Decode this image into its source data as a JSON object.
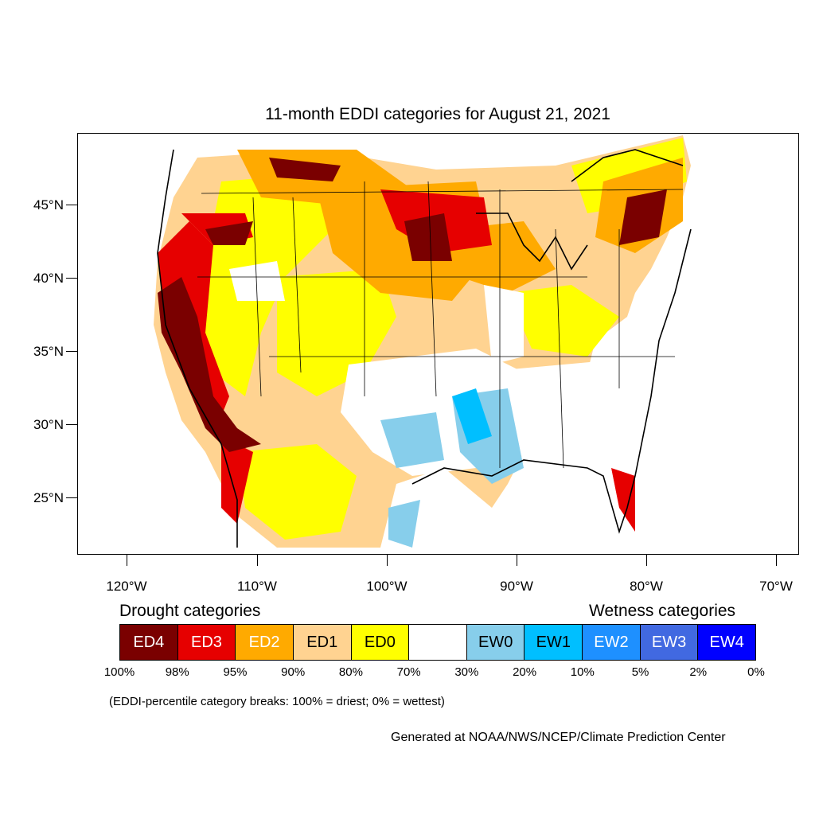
{
  "title": "11-month EDDI categories for August 21, 2021",
  "axes": {
    "lat_labels": [
      "45°N",
      "40°N",
      "35°N",
      "30°N",
      "25°N"
    ],
    "lon_labels": [
      "120°W",
      "110°W",
      "100°W",
      "90°W",
      "80°W",
      "70°W"
    ]
  },
  "legend": {
    "drought_title": "Drought categories",
    "wetness_title": "Wetness categories",
    "categories": [
      {
        "label": "ED4",
        "color": "#7a0000",
        "text_color": "#ffffff"
      },
      {
        "label": "ED3",
        "color": "#e60000",
        "text_color": "#ffffff"
      },
      {
        "label": "ED2",
        "color": "#ffaa00",
        "text_color": "#ffffff"
      },
      {
        "label": "ED1",
        "color": "#ffd391",
        "text_color": "#000000"
      },
      {
        "label": "ED0",
        "color": "#ffff00",
        "text_color": "#000000"
      },
      {
        "label": "",
        "color": "#ffffff",
        "text_color": "#000000"
      },
      {
        "label": "EW0",
        "color": "#87ceeb",
        "text_color": "#000000"
      },
      {
        "label": "EW1",
        "color": "#00bfff",
        "text_color": "#000000"
      },
      {
        "label": "EW2",
        "color": "#1e90ff",
        "text_color": "#ffffff"
      },
      {
        "label": "EW3",
        "color": "#4169e1",
        "text_color": "#ffffff"
      },
      {
        "label": "EW4",
        "color": "#0000ff",
        "text_color": "#ffffff"
      }
    ],
    "breaks": [
      "100%",
      "98%",
      "95%",
      "90%",
      "80%",
      "70%",
      "30%",
      "20%",
      "10%",
      "5%",
      "2%",
      "0%"
    ]
  },
  "note": "(EDDI-percentile category breaks: 100% = driest; 0% = wettest)",
  "credit": "Generated at NOAA/NWS/NCEP/Climate Prediction Center"
}
